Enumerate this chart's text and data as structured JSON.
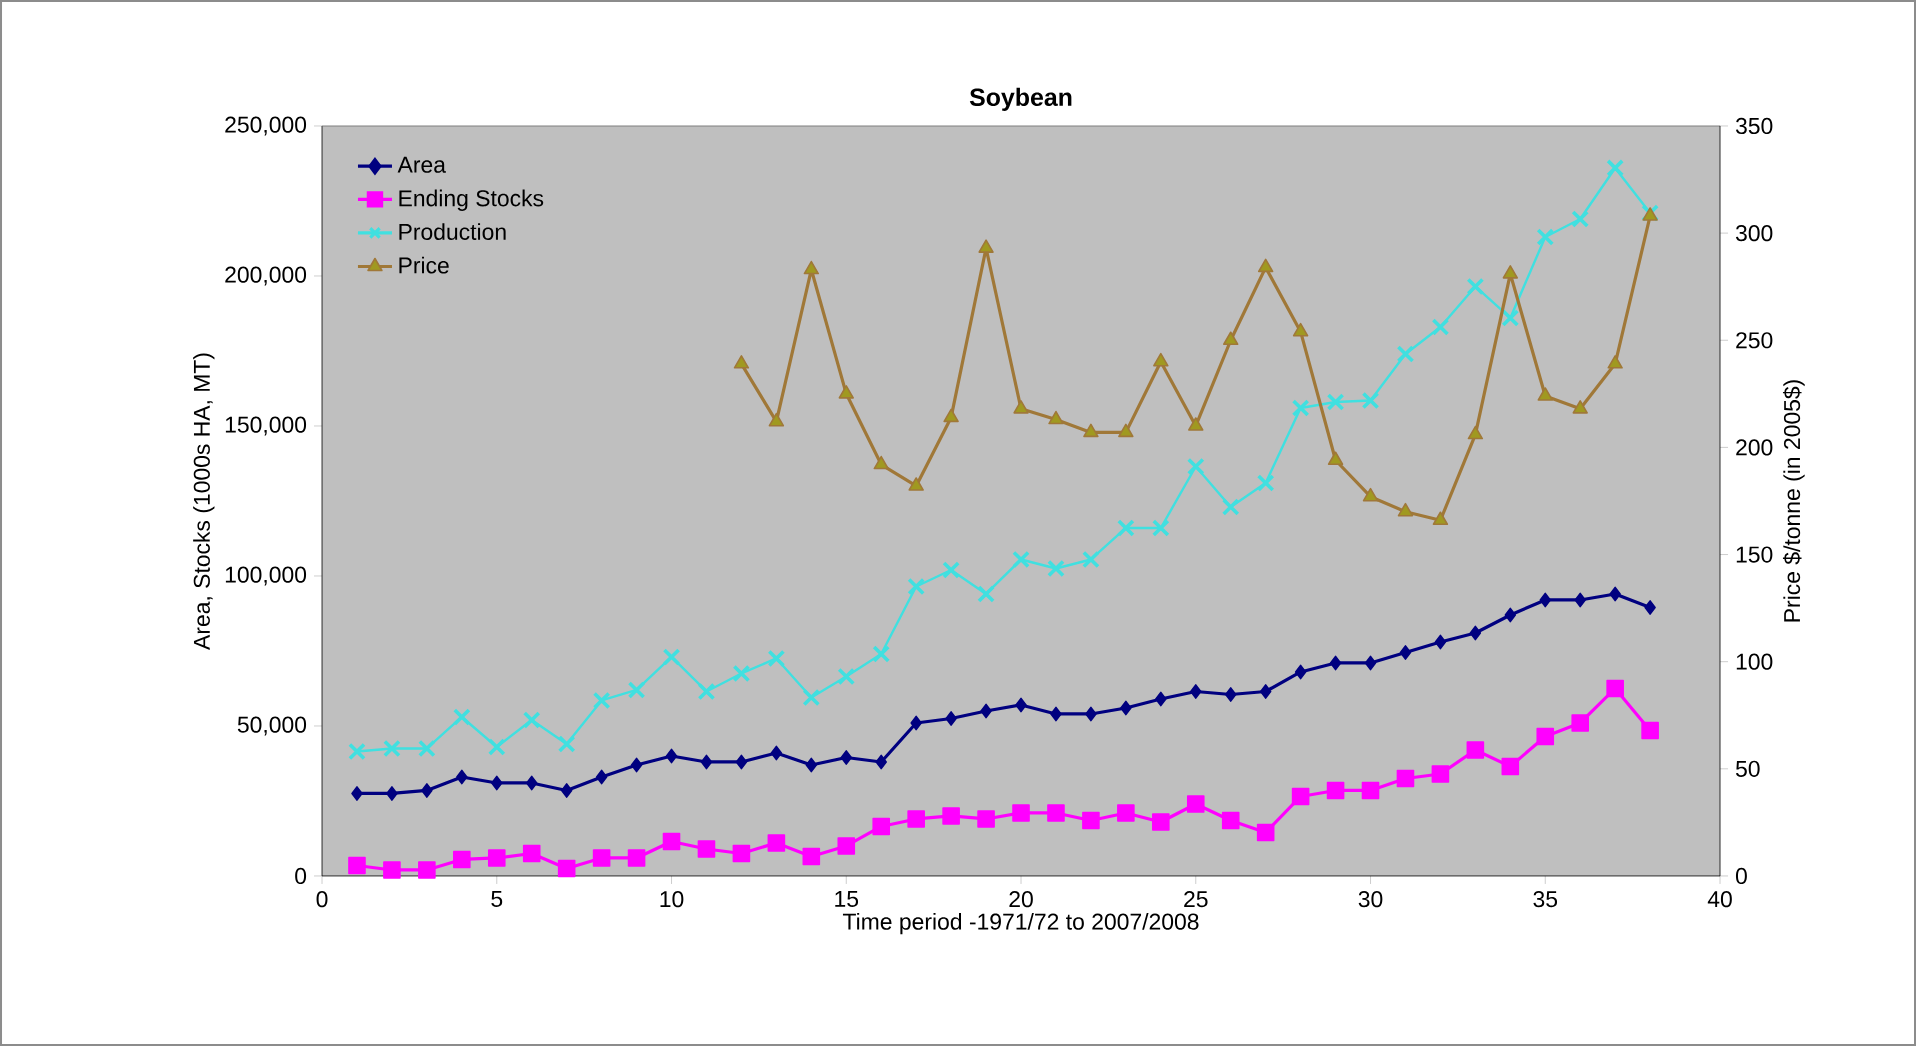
{
  "chart_data": {
    "type": "line",
    "title": "Soybean",
    "xlabel": "Time period -1971/72 to 2007/2008",
    "ylabel": "Area, Stocks (1000s HA, MT)",
    "y2label": "Price $/tonne (in 2005$)",
    "x": [
      1,
      2,
      3,
      4,
      5,
      6,
      7,
      8,
      9,
      10,
      11,
      12,
      13,
      14,
      15,
      16,
      17,
      18,
      19,
      20,
      21,
      22,
      23,
      24,
      25,
      26,
      27,
      28,
      29,
      30,
      31,
      32,
      33,
      34,
      35,
      36,
      37,
      38
    ],
    "xlim": [
      0,
      40
    ],
    "xticks": [
      0,
      5,
      10,
      15,
      20,
      25,
      30,
      35,
      40
    ],
    "ylim": [
      0,
      250000
    ],
    "yticks": [
      0,
      {
        "value": 50000,
        "label": "50,000"
      },
      {
        "value": 100000,
        "label": "100,000"
      },
      {
        "value": 150000,
        "label": "150,000"
      },
      {
        "value": 200000,
        "label": "200,000"
      },
      {
        "value": 250000,
        "label": "250,000"
      }
    ],
    "y2lim": [
      0,
      350
    ],
    "y2ticks": [
      0,
      50,
      100,
      150,
      200,
      250,
      300,
      350
    ],
    "legend": "top left",
    "grid": false,
    "series": [
      {
        "name": "Area",
        "color": "#000080",
        "marker": "diamond",
        "values": [
          27500,
          27500,
          28500,
          33000,
          31000,
          31000,
          28500,
          33000,
          37000,
          40000,
          38000,
          38000,
          41000,
          37000,
          39500,
          38000,
          51000,
          52500,
          55000,
          57000,
          54000,
          54000,
          56000,
          59000,
          61500,
          60500,
          61500,
          68000,
          71000,
          71000,
          74500,
          78000,
          81000,
          87000,
          92000,
          92000,
          94000,
          89500
        ]
      },
      {
        "name": "Ending Stocks",
        "color": "#ff00ff",
        "marker": "square",
        "values": [
          3500,
          2000,
          2000,
          5500,
          6000,
          7500,
          2500,
          6000,
          6000,
          11500,
          9000,
          7500,
          11000,
          6500,
          10000,
          16500,
          19000,
          20000,
          19000,
          21000,
          21000,
          18500,
          21000,
          18000,
          24000,
          18500,
          14500,
          26500,
          28500,
          28500,
          32500,
          34000,
          42000,
          36500,
          46500,
          51000,
          62500,
          48500
        ]
      },
      {
        "name": "Production",
        "color": "#40e0e0",
        "marker": "cross",
        "values": [
          41500,
          42500,
          42500,
          53000,
          43000,
          52000,
          44000,
          58500,
          62000,
          73000,
          61500,
          67500,
          72500,
          59500,
          66500,
          74000,
          96500,
          102000,
          94000,
          105500,
          102500,
          105500,
          116000,
          116000,
          136500,
          123000,
          131000,
          156000,
          158000,
          158500,
          174000,
          183000,
          196500,
          186000,
          213000,
          219000,
          236000,
          221000
        ]
      },
      {
        "name": "Price",
        "color": "#a07838",
        "marker": "triangle",
        "axis": "y2",
        "x": [
          12,
          13,
          14,
          15,
          16,
          17,
          18,
          19,
          20,
          21,
          22,
          23,
          24,
          25,
          26,
          27,
          28,
          29,
          30,
          31,
          32,
          33,
          34,
          35,
          36,
          37,
          38
        ],
        "values": [
          239,
          212,
          283,
          225,
          192,
          182,
          214,
          293,
          218,
          213,
          207,
          207,
          240,
          210,
          250,
          284,
          254,
          194,
          177,
          170,
          166,
          206,
          281,
          224,
          218,
          239,
          308
        ]
      }
    ]
  }
}
